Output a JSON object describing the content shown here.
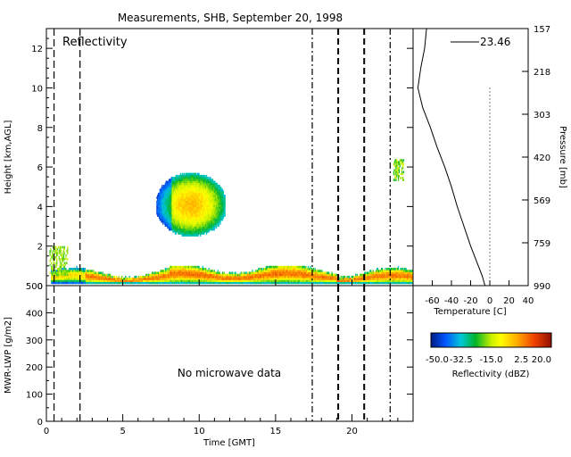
{
  "figure": {
    "title": "Measurements, SHB, September 20, 1998"
  },
  "chart_data": [
    {
      "type": "heatmap",
      "panel_label": "Reflectivity",
      "ylabel": "Height [km,AGL]",
      "xlim": [
        0,
        24
      ],
      "ylim": [
        0,
        13
      ],
      "yticks": [
        0,
        2,
        4,
        6,
        8,
        10,
        12
      ],
      "xticks": [
        0,
        5,
        10,
        15,
        20
      ],
      "grid": false,
      "dashed_time_markers": [
        0.5,
        2.2,
        17.4,
        19.1,
        20.8,
        22.5
      ],
      "cloud_regions": [
        {
          "name": "boundary layer cloud",
          "t_start": 0.3,
          "t_end": 24,
          "base_km": 0.1,
          "top_km": 0.9
        },
        {
          "name": "elevated cloud",
          "t_start": 7.2,
          "t_end": 11.7,
          "base_km": 2.5,
          "top_km": 5.6
        },
        {
          "name": "early low echo",
          "t_start": 0.2,
          "t_end": 1.4,
          "base_km": 0.5,
          "top_km": 2.0
        },
        {
          "name": "late high echo",
          "t_start": 22.7,
          "t_end": 23.4,
          "base_km": 5.3,
          "top_km": 6.3
        }
      ]
    },
    {
      "type": "line",
      "name": "temperature profile",
      "xlabel": "Temperature [C]",
      "ylabel": "Pressure [mb]",
      "xlim": [
        -80,
        40
      ],
      "xticks": [
        -60,
        -40,
        -20,
        0,
        20,
        40
      ],
      "pressure_ticks": [
        157,
        218,
        303,
        420,
        569,
        759,
        990
      ],
      "zero_line": 0,
      "annotation": "23.46",
      "height_km": [
        0,
        0.5,
        1,
        2,
        3,
        4,
        5,
        6,
        7,
        8,
        9,
        10,
        11,
        12,
        12.5,
        13
      ],
      "temperature_c": [
        -5,
        -8,
        -12,
        -20,
        -27,
        -34,
        -40,
        -47,
        -55,
        -62,
        -70,
        -75,
        -72,
        -68,
        -67,
        -66
      ]
    },
    {
      "type": "line",
      "name": "MWR-LWP",
      "ylabel": "MWR-LWP [g/m2]",
      "xlabel": "Time [GMT]",
      "xlim": [
        0,
        24
      ],
      "ylim": [
        0,
        500
      ],
      "yticks": [
        0,
        100,
        200,
        300,
        400,
        500
      ],
      "xticks": [
        0,
        5,
        10,
        15,
        20
      ],
      "annotation": "No microwave data",
      "values": []
    },
    {
      "type": "colorbar",
      "label": "Reflectivity (dBZ)",
      "range": [
        -50,
        20
      ],
      "ticks": [
        "-50.0",
        "-32.5",
        "-15.0",
        "2.5",
        "20.0"
      ]
    }
  ]
}
